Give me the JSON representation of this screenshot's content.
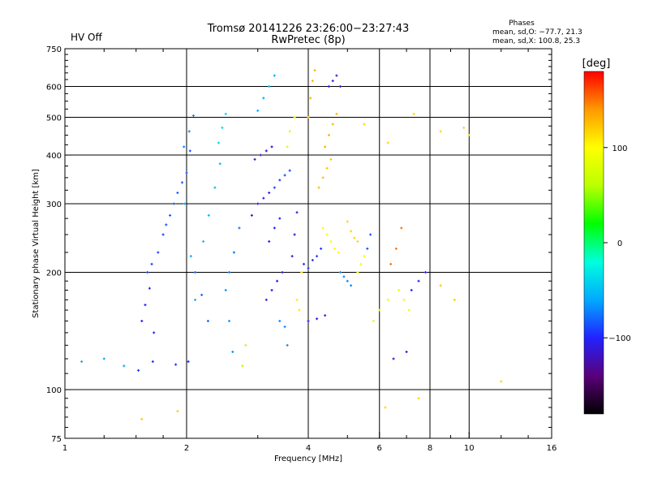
{
  "chart_data": {
    "type": "scatter",
    "title": "Tromsø 20141226 23:26:00−23:27:43",
    "subtitle": "RwPretec (8p)",
    "status": "HV Off",
    "status_color": "#cc1111",
    "stats": {
      "heading": "Phases",
      "line1": "mean, sd,O: −77.7, 21.3",
      "line2": "mean, sd,X: 100.8, 25.3"
    },
    "xlabel": "Frequency [MHz]",
    "ylabel": "Stationary phase Virtual Height [km]",
    "x_scale": "log2",
    "y_scale": "log",
    "xlim": [
      1,
      16
    ],
    "ylim": [
      75,
      750
    ],
    "x_ticks": [
      {
        "value": 1,
        "label": "1"
      },
      {
        "value": 2,
        "label": "2"
      },
      {
        "value": 4,
        "label": "4"
      },
      {
        "value": 6,
        "label": "6"
      },
      {
        "value": 8,
        "label": "8"
      },
      {
        "value": 10,
        "label": "10"
      },
      {
        "value": 16,
        "label": "16"
      }
    ],
    "x_gridlines": [
      2,
      4,
      6,
      8,
      10
    ],
    "y_ticks": [
      {
        "value": 75,
        "label": "75"
      },
      {
        "value": 100,
        "label": "100"
      },
      {
        "value": 200,
        "label": "200"
      },
      {
        "value": 300,
        "label": "300"
      },
      {
        "value": 400,
        "label": "400"
      },
      {
        "value": 500,
        "label": "500"
      },
      {
        "value": 600,
        "label": "600"
      },
      {
        "value": 750,
        "label": "750"
      }
    ],
    "y_gridlines": [
      100,
      200,
      300,
      400,
      500,
      600
    ],
    "grid": true,
    "colorbar": {
      "label": "[deg]",
      "min": -180,
      "max": 180,
      "ticks": [
        {
          "value": 100,
          "label": "100"
        },
        {
          "value": 0,
          "label": "0"
        },
        {
          "value": -100,
          "label": "−100"
        }
      ],
      "colormap": [
        "#000000",
        "#5a007a",
        "#2222ff",
        "#00aaff",
        "#00ffdd",
        "#00ff00",
        "#bbff00",
        "#ffff00",
        "#ff9900",
        "#ff0000"
      ]
    },
    "series": [
      {
        "x": [
          1.52,
          1.65,
          1.88,
          2.02
        ],
        "y": [
          112,
          118,
          116,
          118
        ],
        "phase": -95
      },
      {
        "x": [
          1.55,
          1.58,
          1.62,
          1.66
        ],
        "y": [
          150,
          165,
          182,
          140
        ],
        "phase": -100
      },
      {
        "x": [
          1.6,
          1.64,
          1.7,
          1.75
        ],
        "y": [
          200,
          210,
          225,
          250
        ],
        "phase": -90
      },
      {
        "x": [
          1.78,
          1.82,
          1.86,
          1.9,
          1.95,
          2.0,
          2.04
        ],
        "y": [
          265,
          280,
          300,
          320,
          340,
          360,
          410
        ],
        "phase": -85
      },
      {
        "x": [
          1.97,
          2.03,
          2.08
        ],
        "y": [
          420,
          460,
          505
        ],
        "phase": -70
      },
      {
        "x": [
          1.98,
          2.05,
          2.1
        ],
        "y": [
          300,
          220,
          170
        ],
        "phase": -60
      },
      {
        "x": [
          2.1,
          2.18,
          2.26
        ],
        "y": [
          200,
          175,
          150
        ],
        "phase": -80
      },
      {
        "x": [
          2.2,
          2.27,
          2.35,
          2.42
        ],
        "y": [
          240,
          280,
          330,
          380
        ],
        "phase": -50
      },
      {
        "x": [
          2.4,
          2.45,
          2.5
        ],
        "y": [
          430,
          470,
          510
        ],
        "phase": -40
      },
      {
        "x": [
          2.5,
          2.55,
          2.6
        ],
        "y": [
          180,
          150,
          125
        ],
        "phase": -65
      },
      {
        "x": [
          2.55,
          2.62,
          2.7
        ],
        "y": [
          200,
          225,
          260
        ],
        "phase": -75
      },
      {
        "x": [
          2.75,
          2.8
        ],
        "y": [
          115,
          130
        ],
        "phase": 60
      },
      {
        "x": [
          2.9,
          3.0,
          3.1,
          3.2
        ],
        "y": [
          280,
          300,
          310,
          320
        ],
        "phase": -110
      },
      {
        "x": [
          2.95,
          3.05,
          3.15,
          3.25
        ],
        "y": [
          390,
          400,
          410,
          420
        ],
        "phase": -120
      },
      {
        "x": [
          3.0,
          3.1,
          3.2,
          3.3
        ],
        "y": [
          520,
          560,
          600,
          640
        ],
        "phase": -60
      },
      {
        "x": [
          3.15,
          3.25,
          3.35,
          3.45
        ],
        "y": [
          170,
          180,
          190,
          200
        ],
        "phase": -110
      },
      {
        "x": [
          3.2,
          3.3,
          3.4
        ],
        "y": [
          240,
          260,
          275
        ],
        "phase": -100
      },
      {
        "x": [
          3.3,
          3.4,
          3.5,
          3.6
        ],
        "y": [
          330,
          345,
          355,
          365
        ],
        "phase": -90
      },
      {
        "x": [
          3.4,
          3.5,
          3.55
        ],
        "y": [
          150,
          145,
          130
        ],
        "phase": -70
      },
      {
        "x": [
          3.55,
          3.6,
          3.7
        ],
        "y": [
          420,
          460,
          500
        ],
        "phase": 80
      },
      {
        "x": [
          3.65,
          3.7,
          3.75
        ],
        "y": [
          220,
          250,
          285
        ],
        "phase": -115
      },
      {
        "x": [
          3.75,
          3.8,
          3.85
        ],
        "y": [
          170,
          160,
          200
        ],
        "phase": 110
      },
      {
        "x": [
          3.9,
          4.0,
          4.1,
          4.2,
          4.3
        ],
        "y": [
          210,
          205,
          215,
          220,
          230
        ],
        "phase": -95
      },
      {
        "x": [
          4.0,
          4.05,
          4.1,
          4.15
        ],
        "y": [
          500,
          560,
          620,
          660
        ],
        "phase": 130
      },
      {
        "x": [
          4.0,
          4.2,
          4.4
        ],
        "y": [
          150,
          152,
          155
        ],
        "phase": -105
      },
      {
        "x": [
          4.25,
          4.35,
          4.45,
          4.55
        ],
        "y": [
          330,
          350,
          370,
          390
        ],
        "phase": 125
      },
      {
        "x": [
          4.4,
          4.5,
          4.6,
          4.7
        ],
        "y": [
          420,
          450,
          480,
          510
        ],
        "phase": 130
      },
      {
        "x": [
          4.35,
          4.45,
          4.55,
          4.65,
          4.75
        ],
        "y": [
          260,
          250,
          240,
          230,
          225
        ],
        "phase": 100
      },
      {
        "x": [
          4.5,
          4.6,
          4.7,
          4.8
        ],
        "y": [
          600,
          620,
          640,
          600
        ],
        "phase": -115
      },
      {
        "x": [
          4.8,
          4.9,
          5.0,
          5.1
        ],
        "y": [
          200,
          195,
          190,
          185
        ],
        "phase": -70
      },
      {
        "x": [
          5.0,
          5.1,
          5.2,
          5.3
        ],
        "y": [
          270,
          255,
          245,
          240
        ],
        "phase": 115
      },
      {
        "x": [
          5.3,
          5.4,
          5.5
        ],
        "y": [
          200,
          210,
          220
        ],
        "phase": 95
      },
      {
        "x": [
          5.6,
          5.7
        ],
        "y": [
          230,
          250
        ],
        "phase": -85
      },
      {
        "x": [
          5.8,
          6.0,
          6.3
        ],
        "y": [
          150,
          160,
          170
        ],
        "phase": 85
      },
      {
        "x": [
          6.4,
          6.6,
          6.8
        ],
        "y": [
          210,
          230,
          260
        ],
        "phase": 150
      },
      {
        "x": [
          6.7,
          6.9,
          7.1
        ],
        "y": [
          180,
          170,
          160
        ],
        "phase": 90
      },
      {
        "x": [
          6.5,
          7.0
        ],
        "y": [
          120,
          125
        ],
        "phase": -110
      },
      {
        "x": [
          7.2,
          7.5,
          7.8
        ],
        "y": [
          180,
          190,
          200
        ],
        "phase": -100
      },
      {
        "x": [
          8.5,
          9.2
        ],
        "y": [
          185,
          170
        ],
        "phase": 120
      },
      {
        "x": [
          1.1,
          1.25,
          1.4
        ],
        "y": [
          118,
          120,
          115
        ],
        "phase": -60
      },
      {
        "x": [
          6.2,
          7.5,
          12
        ],
        "y": [
          90,
          95,
          105
        ],
        "phase": 115
      },
      {
        "x": [
          1.9,
          1.55
        ],
        "y": [
          88,
          84
        ],
        "phase": 120
      },
      {
        "x": [
          5.5,
          6.3,
          7.3,
          8.5,
          9.7,
          10
        ],
        "y": [
          480,
          430,
          510,
          460,
          470,
          450
        ],
        "phase": 115
      }
    ]
  }
}
